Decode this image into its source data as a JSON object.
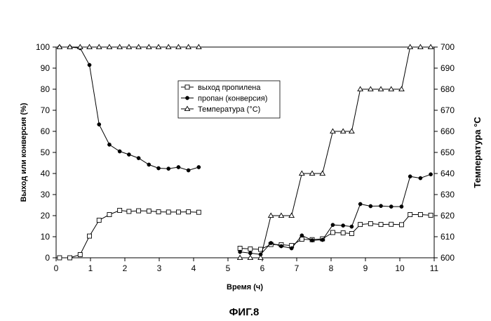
{
  "figure_caption": "ФИГ.8",
  "chart_data": {
    "type": "line",
    "title": "",
    "xlabel": "Время (ч)",
    "ylabel": "Выход или конверсия (%)",
    "y2label": "Температура °C",
    "xlim": [
      0,
      11
    ],
    "ylim": [
      0,
      100
    ],
    "y2lim": [
      600,
      700
    ],
    "xticks": [
      0,
      1,
      2,
      3,
      4,
      5,
      6,
      7,
      8,
      9,
      10,
      11
    ],
    "yticks": [
      0,
      10,
      20,
      30,
      40,
      50,
      60,
      70,
      80,
      90,
      100
    ],
    "y2ticks": [
      600,
      610,
      620,
      630,
      640,
      650,
      660,
      670,
      680,
      690,
      700
    ],
    "grid": false,
    "legend_position": "center",
    "series": [
      {
        "name": "выход пропилена",
        "axis": "left",
        "marker": "square-open",
        "color": "#000000",
        "segments": [
          {
            "x": [
              0.1,
              0.4,
              0.7,
              0.97,
              1.25,
              1.55,
              1.85,
              2.12,
              2.4,
              2.7,
              2.98,
              3.27,
              3.56,
              3.85,
              4.15
            ],
            "y": [
              0,
              0,
              1.5,
              10.3,
              17.8,
              20.5,
              22.5,
              22.0,
              22.3,
              22.2,
              21.8,
              21.7,
              21.7,
              21.8,
              21.6
            ]
          },
          {
            "x": [
              5.35,
              5.65,
              5.95,
              6.25,
              6.55,
              6.85,
              7.15,
              7.45,
              7.75,
              8.05,
              8.35,
              8.6,
              8.85,
              9.15,
              9.45,
              9.75,
              10.05,
              10.3,
              10.6,
              10.9
            ],
            "y": [
              4.5,
              4.2,
              4.0,
              6.3,
              6.2,
              5.8,
              8.8,
              8.6,
              9.0,
              12.0,
              11.8,
              11.5,
              15.8,
              16.2,
              15.8,
              15.9,
              15.7,
              20.5,
              20.5,
              20.2
            ]
          }
        ]
      },
      {
        "name": "пропан (конверсия)",
        "axis": "left",
        "marker": "circle-filled",
        "color": "#000000",
        "segments": [
          {
            "x": [
              0.1,
              0.4,
              0.7,
              0.97,
              1.25,
              1.55,
              1.85,
              2.12,
              2.4,
              2.7,
              2.98,
              3.27,
              3.56,
              3.85,
              4.15
            ],
            "y": [
              100,
              100,
              99.5,
              91.5,
              63.3,
              53.7,
              50.5,
              49.0,
              47.3,
              44.2,
              42.5,
              42.3,
              43.0,
              41.5,
              43.0
            ]
          },
          {
            "x": [
              5.35,
              5.65,
              5.95,
              6.25,
              6.55,
              6.85,
              7.15,
              7.45,
              7.75,
              8.05,
              8.35,
              8.6,
              8.85,
              9.15,
              9.45,
              9.75,
              10.05,
              10.3,
              10.6,
              10.9
            ],
            "y": [
              2.8,
              2.2,
              1.6,
              7.0,
              5.5,
              4.5,
              10.6,
              8.3,
              8.5,
              15.6,
              15.3,
              14.8,
              25.5,
              24.5,
              24.6,
              24.3,
              24.3,
              38.6,
              37.8,
              39.6
            ]
          }
        ]
      },
      {
        "name": "Температура (°C)",
        "axis": "right",
        "marker": "triangle-open",
        "color": "#000000",
        "segments": [
          {
            "x": [
              0.1,
              0.4,
              0.7,
              0.97,
              1.25,
              1.55,
              1.85,
              2.12,
              2.4,
              2.7,
              2.98,
              3.27,
              3.56,
              3.85,
              4.15
            ],
            "y": [
              700,
              700,
              700,
              700,
              700,
              700,
              700,
              700,
              700,
              700,
              700,
              700,
              700,
              700,
              700
            ]
          },
          {
            "x": [
              5.35,
              5.65,
              5.95,
              6.25,
              6.55,
              6.85,
              7.15,
              7.45,
              7.75,
              8.05,
              8.35,
              8.6,
              8.85,
              9.15,
              9.45,
              9.75,
              10.05,
              10.3,
              10.6,
              10.9
            ],
            "y": [
              600,
              600,
              600,
              620,
              620,
              620,
              640,
              640,
              640,
              660,
              660,
              660,
              680,
              680,
              680,
              680,
              680,
              700,
              700,
              700
            ]
          }
        ]
      }
    ]
  }
}
